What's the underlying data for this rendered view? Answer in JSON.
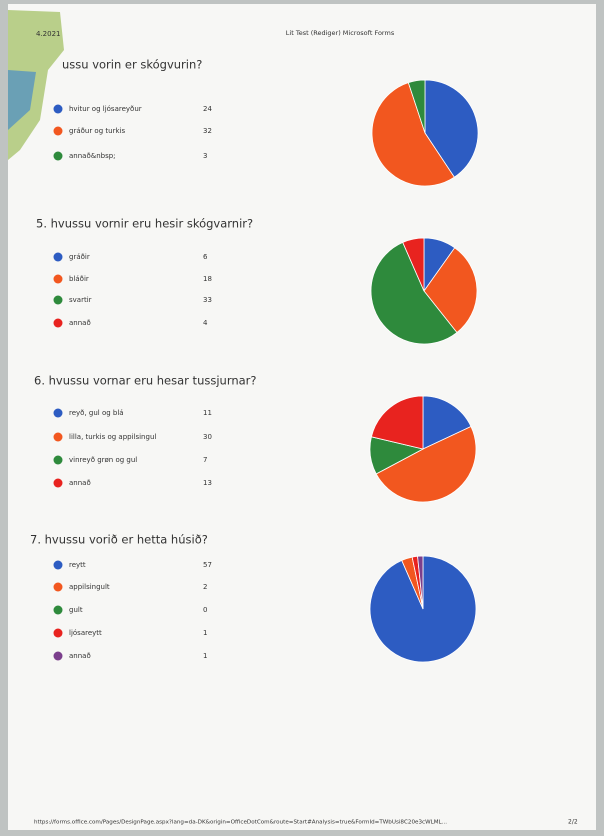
{
  "header": {
    "date": "4.2021",
    "title": "Lit Test (Rediger) Microsoft Forms"
  },
  "questions": [
    {
      "title": "ussu vorin er skógvurin?",
      "options": [
        {
          "label": "hvitur og ljósareyður",
          "count": 24,
          "color": "#2d5cc2"
        },
        {
          "label": "gráður og turkis",
          "count": 32,
          "color": "#f2571f"
        },
        {
          "label": "annað&nbsp;",
          "count": 3,
          "color": "#2e8a3c"
        }
      ]
    },
    {
      "title": "5. hvussu vornir eru hesir skógvarnir?",
      "options": [
        {
          "label": "gráðir",
          "count": 6,
          "color": "#2d5cc2"
        },
        {
          "label": "bláðir",
          "count": 18,
          "color": "#f2571f"
        },
        {
          "label": "svartir",
          "count": 33,
          "color": "#2e8a3c"
        },
        {
          "label": "annað",
          "count": 4,
          "color": "#e8231f"
        }
      ]
    },
    {
      "title": "6. hvussu vornar eru hesar tussjurnar?",
      "options": [
        {
          "label": "reyð, gul og blá",
          "count": 11,
          "color": "#2d5cc2"
        },
        {
          "label": "lilla, turkis og appilsingul",
          "count": 30,
          "color": "#f2571f"
        },
        {
          "label": "vinreyð grøn og gul",
          "count": 7,
          "color": "#2e8a3c"
        },
        {
          "label": "annað",
          "count": 13,
          "color": "#e8231f"
        }
      ]
    },
    {
      "title": "7. hvussu vorið er hetta húsið?",
      "options": [
        {
          "label": "reytt",
          "count": 57,
          "color": "#2d5cc2"
        },
        {
          "label": "appilsingult",
          "count": 2,
          "color": "#f2571f"
        },
        {
          "label": "gult",
          "count": 0,
          "color": "#2e8a3c"
        },
        {
          "label": "ljósareytt",
          "count": 1,
          "color": "#e8231f"
        },
        {
          "label": "annað",
          "count": 1,
          "color": "#7b3f8c"
        }
      ]
    }
  ],
  "footer": {
    "url": "https://forms.office.com/Pages/DesignPage.aspx?lang=da-DK&origin=OfficeDotCom&route=Start#Analysis=true&FormId=TWbUsi8C20e3cWLML...",
    "page": "2/2"
  }
}
